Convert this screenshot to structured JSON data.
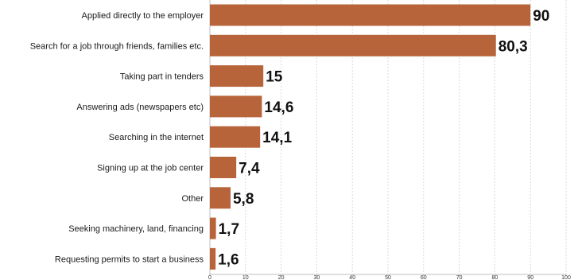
{
  "chart_data": {
    "type": "bar",
    "orientation": "horizontal",
    "categories": [
      "Applied directly to the employer",
      "Search for a job through friends, families etc.",
      "Taking part in tenders",
      "Answering ads (newspapers etc)",
      "Searching in the internet",
      "Signing up at the job center",
      "Other",
      "Seeking machinery, land, financing",
      "Requesting permits to start a business"
    ],
    "values": [
      90,
      80.3,
      15,
      14.6,
      14.1,
      7.4,
      5.8,
      1.7,
      1.6
    ],
    "value_labels": [
      "90",
      "80,3",
      "15",
      "14,6",
      "14,1",
      "7,4",
      "5,8",
      "1,7",
      "1,6"
    ],
    "xlim": [
      0,
      100
    ],
    "ticks": [
      "0",
      "10",
      "20",
      "30",
      "40",
      "50",
      "60",
      "70",
      "80",
      "90",
      "100"
    ],
    "grid": true,
    "bar_color": "#b8643a",
    "title": "",
    "xlabel": "",
    "ylabel": ""
  }
}
